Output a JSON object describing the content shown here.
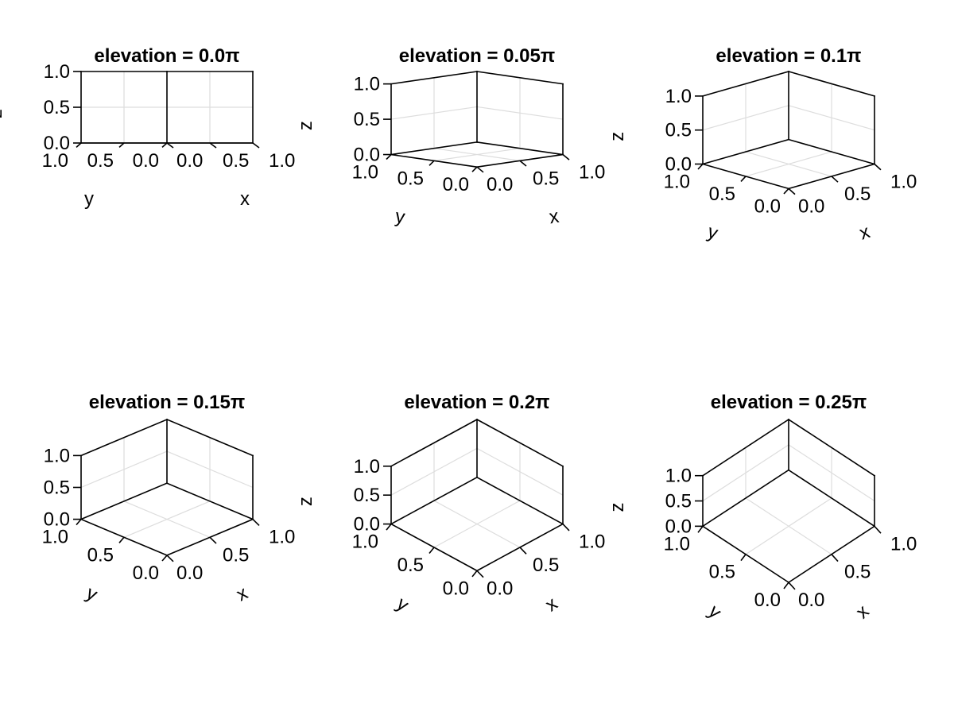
{
  "chart_data": [
    {
      "type": "axis3d",
      "title": "elevation = 0.0π",
      "elevation_pi": 0.0,
      "xlabel": "x",
      "ylabel": "y",
      "zlabel": "z",
      "xlim": [
        0,
        1
      ],
      "ylim": [
        0,
        1
      ],
      "zlim": [
        0,
        1
      ],
      "xticks": [
        "0.0",
        "0.5",
        "1.0"
      ],
      "yticks": [
        "0.0",
        "0.5",
        "1.0"
      ],
      "zticks": [
        "0.0",
        "0.5",
        "1.0"
      ],
      "grid": true
    },
    {
      "type": "axis3d",
      "title": "elevation = 0.05π",
      "elevation_pi": 0.05,
      "xlabel": "x",
      "ylabel": "y",
      "zlabel": "z",
      "xlim": [
        0,
        1
      ],
      "ylim": [
        0,
        1
      ],
      "zlim": [
        0,
        1
      ],
      "xticks": [
        "0.0",
        "0.5",
        "1.0"
      ],
      "yticks": [
        "0.0",
        "0.5",
        "1.0"
      ],
      "zticks": [
        "0.0",
        "0.5",
        "1.0"
      ],
      "grid": true
    },
    {
      "type": "axis3d",
      "title": "elevation = 0.1π",
      "elevation_pi": 0.1,
      "xlabel": "x",
      "ylabel": "y",
      "zlabel": "z",
      "xlim": [
        0,
        1
      ],
      "ylim": [
        0,
        1
      ],
      "zlim": [
        0,
        1
      ],
      "xticks": [
        "0.0",
        "0.5",
        "1.0"
      ],
      "yticks": [
        "0.0",
        "0.5",
        "1.0"
      ],
      "zticks": [
        "0.0",
        "0.5",
        "1.0"
      ],
      "grid": true
    },
    {
      "type": "axis3d",
      "title": "elevation = 0.15π",
      "elevation_pi": 0.15,
      "xlabel": "x",
      "ylabel": "y",
      "zlabel": "",
      "xlim": [
        0,
        1
      ],
      "ylim": [
        0,
        1
      ],
      "zlim": [
        0,
        1
      ],
      "xticks": [
        "0.0",
        "0.5",
        "1.0"
      ],
      "yticks": [
        "0.0",
        "0.5",
        "1.0"
      ],
      "zticks": [
        "0.0",
        "0.5",
        "1.0"
      ],
      "grid": true
    },
    {
      "type": "axis3d",
      "title": "elevation = 0.2π",
      "elevation_pi": 0.2,
      "xlabel": "x",
      "ylabel": "y",
      "zlabel": "z",
      "xlim": [
        0,
        1
      ],
      "ylim": [
        0,
        1
      ],
      "zlim": [
        0,
        1
      ],
      "xticks": [
        "0.0",
        "0.5",
        "1.0"
      ],
      "yticks": [
        "0.0",
        "0.5",
        "1.0"
      ],
      "zticks": [
        "0.0",
        "0.5",
        "1.0"
      ],
      "grid": true
    },
    {
      "type": "axis3d",
      "title": "elevation = 0.25π",
      "elevation_pi": 0.25,
      "xlabel": "x",
      "ylabel": "y",
      "zlabel": "z",
      "xlim": [
        0,
        1
      ],
      "ylim": [
        0,
        1
      ],
      "zlim": [
        0,
        1
      ],
      "xticks": [
        "0.0",
        "0.5",
        "1.0"
      ],
      "yticks": [
        "0.0",
        "0.5",
        "1.0"
      ],
      "zticks": [
        "0.0",
        "0.5",
        "1.0"
      ],
      "grid": true
    }
  ]
}
